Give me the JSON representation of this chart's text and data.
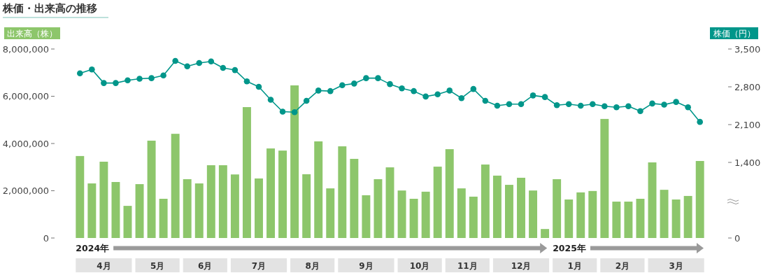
{
  "chart_data": {
    "type": "bar",
    "title": "株価・出来高の推移",
    "ylabel": "出来高（株）",
    "y2label": "株価（円）",
    "x": [
      "2024-04-01",
      "2024-04-08",
      "2024-04-15",
      "2024-04-22",
      "2024-04-29",
      "2024-05-06",
      "2024-05-13",
      "2024-05-20",
      "2024-05-27",
      "2024-06-03",
      "2024-06-10",
      "2024-06-17",
      "2024-06-24",
      "2024-07-01",
      "2024-07-08",
      "2024-07-15",
      "2024-07-22",
      "2024-07-29",
      "2024-08-05",
      "2024-08-12",
      "2024-08-19",
      "2024-08-26",
      "2024-09-02",
      "2024-09-09",
      "2024-09-16",
      "2024-09-23",
      "2024-09-30",
      "2024-10-07",
      "2024-10-14",
      "2024-10-21",
      "2024-10-28",
      "2024-11-04",
      "2024-11-11",
      "2024-11-18",
      "2024-11-25",
      "2024-12-02",
      "2024-12-09",
      "2024-12-16",
      "2024-12-23",
      "2024-12-30",
      "2025-01-06",
      "2025-01-13",
      "2025-01-20",
      "2025-01-27",
      "2025-02-03",
      "2025-02-10",
      "2025-02-17",
      "2025-02-24",
      "2025-03-03",
      "2025-03-10",
      "2025-03-17",
      "2025-03-24",
      "2025-03-31"
    ],
    "series": [
      {
        "color": "#8dc66b",
        "values": [
          3470000,
          2310000,
          3230000,
          2370000,
          1360000,
          2280000,
          4120000,
          1660000,
          4410000,
          2490000,
          2310000,
          3080000,
          3080000,
          2690000,
          5540000,
          2520000,
          3790000,
          3700000,
          6460000,
          2700000,
          4090000,
          2100000,
          3880000,
          3350000,
          1810000,
          2490000,
          2990000,
          2010000,
          1660000,
          1960000,
          3020000,
          3760000,
          2100000,
          1750000,
          3110000,
          2640000,
          2250000,
          2550000,
          2010000,
          380000,
          2490000,
          1630000,
          1930000,
          1990000,
          5040000,
          1540000,
          1540000,
          1660000,
          3200000,
          2040000,
          1630000,
          1780000,
          3260000
        ]
      },
      {
        "type": "line",
        "axis": "y2",
        "color": "#00968a",
        "values": [
          3050,
          3120,
          2870,
          2870,
          2920,
          2950,
          2960,
          3010,
          3280,
          3180,
          3240,
          3270,
          3150,
          3110,
          2900,
          2800,
          2560,
          2340,
          2330,
          2540,
          2730,
          2720,
          2830,
          2860,
          2960,
          2960,
          2850,
          2770,
          2720,
          2620,
          2660,
          2730,
          2590,
          2760,
          2540,
          2450,
          2480,
          2480,
          2640,
          2610,
          2460,
          2480,
          2450,
          2480,
          2440,
          2420,
          2440,
          2350,
          2490,
          2470,
          2520,
          2420,
          2150
        ]
      }
    ],
    "marker": "circle",
    "xlim": [
      "2024-03-29",
      "2025-04-03"
    ],
    "xticks": [
      {
        "value": "2024-04-15",
        "label": "4月"
      },
      {
        "value": "2024-05-16T12:00",
        "label": "5月"
      },
      {
        "value": "2024-06-13T12:00",
        "label": "6月"
      },
      {
        "value": "2024-07-15",
        "label": "7月"
      },
      {
        "value": "2024-08-15T12:00",
        "label": "8月"
      },
      {
        "value": "2024-09-16",
        "label": "9月"
      },
      {
        "value": "2024-10-17T12:00",
        "label": "10月"
      },
      {
        "value": "2024-11-14T12:00",
        "label": "11月"
      },
      {
        "value": "2024-12-16",
        "label": "12月"
      },
      {
        "value": "2025-01-16T12:00",
        "label": "1月"
      },
      {
        "value": "2025-02-13T12:00",
        "label": "2月"
      },
      {
        "value": "2025-03-17",
        "label": "3月"
      }
    ],
    "ylim": [
      0,
      8000000
    ],
    "yticks": [
      0,
      {
        "value": 2000000,
        "label": "2,000,000"
      },
      {
        "value": 4000000,
        "label": "4,000,000"
      },
      {
        "value": 6000000,
        "label": "6,000,000"
      },
      {
        "value": 8000000,
        "label": "8,000,000"
      }
    ],
    "y2lim": [
      0,
      3500
    ],
    "y2ticks": [
      0,
      {
        "value": 1400,
        "label": "1,400"
      },
      {
        "value": 2100,
        "label": "2,100"
      },
      {
        "value": 2800,
        "label": "2,800"
      },
      {
        "value": 3500,
        "label": "3,500"
      }
    ],
    "annotations": [
      "2024年",
      "2025年"
    ]
  }
}
